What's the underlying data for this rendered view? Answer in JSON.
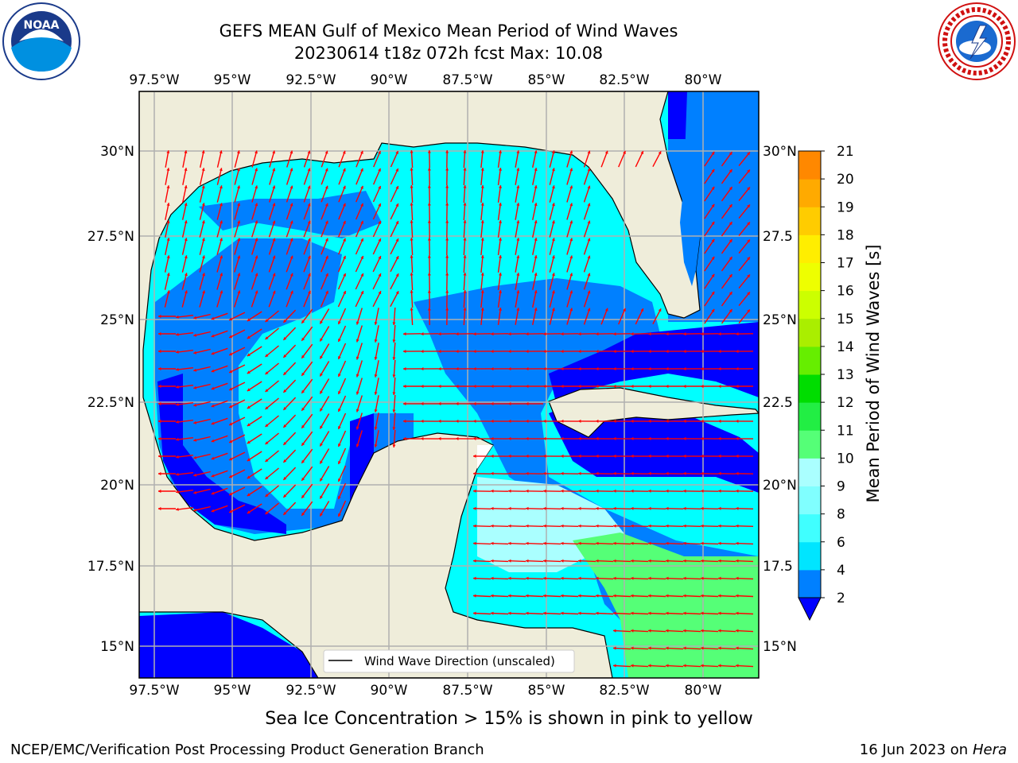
{
  "header": {
    "title_line1": "GEFS MEAN Gulf of Mexico Mean Period of Wind Waves",
    "title_line2": "20230614 t18z 072h fcst   Max: 10.08"
  },
  "logos": {
    "left": "noara-logo",
    "right": "national-weather-service-logo"
  },
  "axes": {
    "lon_labels": [
      "97.5°W",
      "95°W",
      "92.5°W",
      "90°W",
      "87.5°W",
      "85°W",
      "82.5°W",
      "80°W"
    ],
    "lat_labels": [
      "30°N",
      "27.5°N",
      "25°N",
      "22.5°N",
      "20°N",
      "17.5°N",
      "15°N"
    ],
    "lat_labels_right": [
      "30°N",
      "27.5",
      "25°N",
      "22.5",
      "20°N",
      "17.5",
      "15°N"
    ]
  },
  "legend": {
    "label": "Wind Wave Direction (unscaled)"
  },
  "colorbar": {
    "label": "Mean Period of Wind Waves [s]",
    "ticks": [
      "2",
      "4",
      "6",
      "8",
      "9",
      "10",
      "11",
      "12",
      "13",
      "14",
      "15",
      "16",
      "17",
      "18",
      "19",
      "20",
      "21"
    ],
    "colors": [
      "#0080ff",
      "#00e5ff",
      "#40ffff",
      "#80ffff",
      "#aaffff",
      "#55ff77",
      "#22ee44",
      "#00dd00",
      "#66ee00",
      "#aaee00",
      "#ccff00",
      "#eeff00",
      "#ffee00",
      "#ffcc00",
      "#ffaa00",
      "#ff8800",
      "#ff5500",
      "#ff2200"
    ],
    "extend_color": "#0000ff"
  },
  "footer": {
    "note": "Sea Ice Concentration > 15% is shown in pink to yellow",
    "left": "NCEP/EMC/Verification Post Processing Product Generation Branch",
    "date": "16 Jun 2023 on",
    "host": "Hera"
  },
  "map_colors": {
    "land": "#efedda",
    "ocean_base": "#00ffff",
    "band_2_4": "#0080ff",
    "band_lt2": "#0000ff",
    "band_8_9": "#aaffff",
    "band_9_10": "#55ff77",
    "arrow": "#ff0000",
    "grid": "#b0b0b0"
  }
}
